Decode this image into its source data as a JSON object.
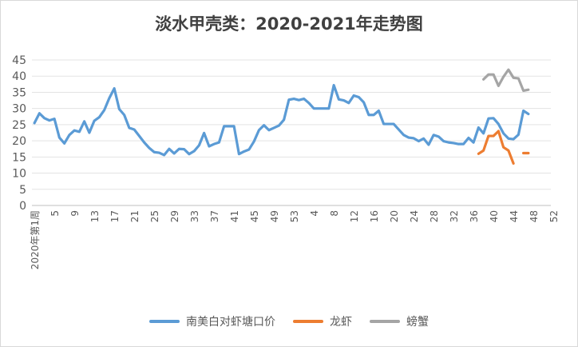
{
  "chart_data": {
    "type": "line",
    "title": "淡水甲壳类：2020-2021年走势图",
    "ylim": [
      0,
      45
    ],
    "y_ticks": [
      0,
      5,
      10,
      15,
      20,
      25,
      30,
      35,
      40,
      45
    ],
    "x_first_label": "2020年第1周",
    "x_tick_labels": [
      "2020年第1周",
      "5",
      "9",
      "13",
      "17",
      "21",
      "25",
      "29",
      "33",
      "37",
      "41",
      "45",
      "49",
      "53",
      "4",
      "8",
      "12",
      "16",
      "20",
      "24",
      "28",
      "32",
      "36",
      "40",
      "44",
      "48",
      "52"
    ],
    "grid": true,
    "legend_position": "bottom",
    "series": [
      {
        "name": "南美白对虾塘口价",
        "color": "#5b9bd5",
        "values": [
          25.5,
          28.5,
          27,
          26.3,
          26.8,
          21,
          19.2,
          21.8,
          23.2,
          22.8,
          26,
          22.5,
          26.2,
          27.3,
          29.5,
          33.2,
          36.2,
          29.8,
          28,
          24,
          23.5,
          21.5,
          19.5,
          17.8,
          16.5,
          16.3,
          15.6,
          17.5,
          16.1,
          17.5,
          17.4,
          15.9,
          16.8,
          18.6,
          22.4,
          18.3,
          19,
          19.5,
          24.5,
          24.5,
          24.5,
          15.9,
          16.7,
          17.3,
          19.8,
          23.3,
          24.8,
          23.3,
          24,
          24.7,
          26.5,
          32.7,
          33,
          32.6,
          33,
          31.7,
          30,
          30,
          30,
          30,
          37.2,
          32.8,
          32.5,
          31.7,
          34,
          33.5,
          31.9,
          28,
          28,
          29.3,
          25.2,
          25.2,
          25.2,
          23.5,
          21.8,
          21,
          20.8,
          19.9,
          20.7,
          18.8,
          21.8,
          21.3,
          19.9,
          19.5,
          19.3,
          19,
          19,
          20.9,
          19.5,
          24.1,
          22.3,
          26.9,
          27,
          25.2,
          22.3,
          20.7,
          20.5,
          21.9,
          29.3,
          28.3
        ]
      },
      {
        "name": "龙虾",
        "color": "#ed7d31",
        "values": [
          null,
          null,
          null,
          null,
          null,
          null,
          null,
          null,
          null,
          null,
          null,
          null,
          null,
          null,
          null,
          null,
          null,
          null,
          null,
          null,
          null,
          null,
          null,
          null,
          null,
          null,
          null,
          null,
          null,
          null,
          null,
          null,
          null,
          null,
          null,
          null,
          null,
          null,
          null,
          null,
          null,
          null,
          null,
          null,
          null,
          null,
          null,
          null,
          null,
          null,
          null,
          null,
          null,
          null,
          null,
          null,
          null,
          null,
          null,
          null,
          null,
          null,
          null,
          null,
          null,
          null,
          null,
          null,
          null,
          null,
          null,
          null,
          null,
          null,
          null,
          null,
          null,
          null,
          null,
          null,
          null,
          null,
          null,
          null,
          null,
          null,
          null,
          null,
          null,
          16,
          17,
          21.5,
          21.5,
          23,
          18,
          17,
          13,
          null,
          16.2,
          16.2
        ]
      },
      {
        "name": "螃蟹",
        "color": "#a5a5a5",
        "values": [
          null,
          null,
          null,
          null,
          null,
          null,
          null,
          null,
          null,
          null,
          null,
          null,
          null,
          null,
          null,
          null,
          null,
          null,
          null,
          null,
          null,
          null,
          null,
          null,
          null,
          null,
          null,
          null,
          null,
          null,
          null,
          null,
          null,
          null,
          null,
          null,
          null,
          null,
          null,
          null,
          null,
          null,
          null,
          null,
          null,
          null,
          null,
          null,
          null,
          null,
          null,
          null,
          null,
          null,
          null,
          null,
          null,
          null,
          null,
          null,
          null,
          null,
          null,
          null,
          null,
          null,
          null,
          null,
          null,
          null,
          null,
          null,
          null,
          null,
          null,
          null,
          null,
          null,
          null,
          null,
          null,
          null,
          null,
          null,
          null,
          null,
          null,
          null,
          null,
          null,
          39,
          40.5,
          40.5,
          37,
          39.8,
          42,
          39.5,
          39.3,
          35.5,
          35.8
        ]
      }
    ]
  }
}
